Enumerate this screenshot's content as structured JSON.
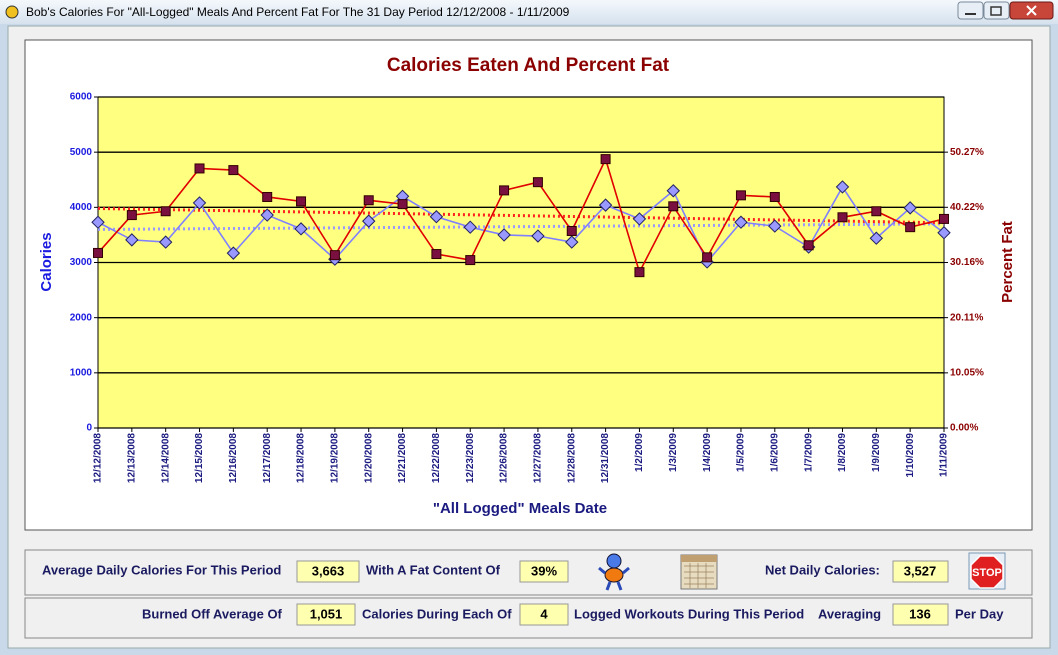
{
  "window": {
    "title": "Bob's Calories For \"All-Logged\" Meals And Percent Fat For The 31 Day Period 12/12/2008 - 1/11/2009"
  },
  "chart_data": {
    "type": "line",
    "title": "Calories Eaten And Percent Fat",
    "x_label": "\"All Logged\" Meals Date",
    "y_label": "Calories",
    "y2_label": "Percent Fat",
    "categories": [
      "12/12/2008",
      "12/13/2008",
      "12/14/2008",
      "12/15/2008",
      "12/16/2008",
      "12/17/2008",
      "12/18/2008",
      "12/19/2008",
      "12/20/2008",
      "12/21/2008",
      "12/22/2008",
      "12/23/2008",
      "12/26/2008",
      "12/27/2008",
      "12/28/2008",
      "12/31/2008",
      "1/2/2009",
      "1/3/2009",
      "1/4/2009",
      "1/5/2009",
      "1/6/2009",
      "1/7/2009",
      "1/8/2009",
      "1/9/2009",
      "1/10/2009",
      "1/11/2009"
    ],
    "series": [
      {
        "color": "#8080ff",
        "marker_color": "#9999ff",
        "values": [
          3730,
          3410,
          3370,
          4080,
          3170,
          3860,
          3610,
          3060,
          3750,
          4200,
          3830,
          3640,
          3500,
          3480,
          3370,
          4040,
          3790,
          4300,
          3010,
          3730,
          3660,
          3280,
          4370,
          3440,
          3990,
          3540
        ]
      },
      {
        "color": "#e00000",
        "marker_color": "#7a1040",
        "axis": "y2",
        "values": [
          31.9,
          38.8,
          39.5,
          47.3,
          47.0,
          42.1,
          41.3,
          31.5,
          41.5,
          40.8,
          31.7,
          30.6,
          43.3,
          44.8,
          35.9,
          49.0,
          28.4,
          40.4,
          31.1,
          42.4,
          42.1,
          33.3,
          38.4,
          39.5,
          36.6,
          38.1
        ]
      }
    ],
    "trends": [
      {
        "color": "#9999ff",
        "values": [
          3600,
          3700
        ]
      },
      {
        "color": "#ff2020",
        "axis": "y2",
        "values": [
          40.0,
          37.4
        ]
      }
    ],
    "ylim": [
      0,
      6000
    ],
    "yticks": [
      0,
      1000,
      2000,
      3000,
      4000,
      5000,
      6000
    ],
    "y2lim": [
      0,
      60.32
    ],
    "y2ticks": [
      {
        "value": 0,
        "label": "0.00%"
      },
      {
        "value": 10.05,
        "label": "10.05%"
      },
      {
        "value": 20.11,
        "label": "20.11%"
      },
      {
        "value": 30.16,
        "label": "30.16%"
      },
      {
        "value": 40.22,
        "label": "40.22%"
      },
      {
        "value": 50.27,
        "label": "50.27%"
      }
    ],
    "grid": true
  },
  "summary": {
    "avg_label": "Average Daily Calories For This Period",
    "avg_value": "3,663",
    "fat_label": "With A Fat Content Of",
    "fat_value": "39%",
    "net_label": "Net Daily Calories:",
    "net_value": "3,527",
    "stop": "STOP",
    "burned_label": "Burned Off Average Of",
    "burned_value": "1,051",
    "during_label": "Calories During Each Of",
    "workouts_value": "4",
    "logged_label": "Logged Workouts During This Period",
    "averaging_label": "Averaging",
    "per_day_value": "136",
    "per_day_label": "Per Day"
  }
}
